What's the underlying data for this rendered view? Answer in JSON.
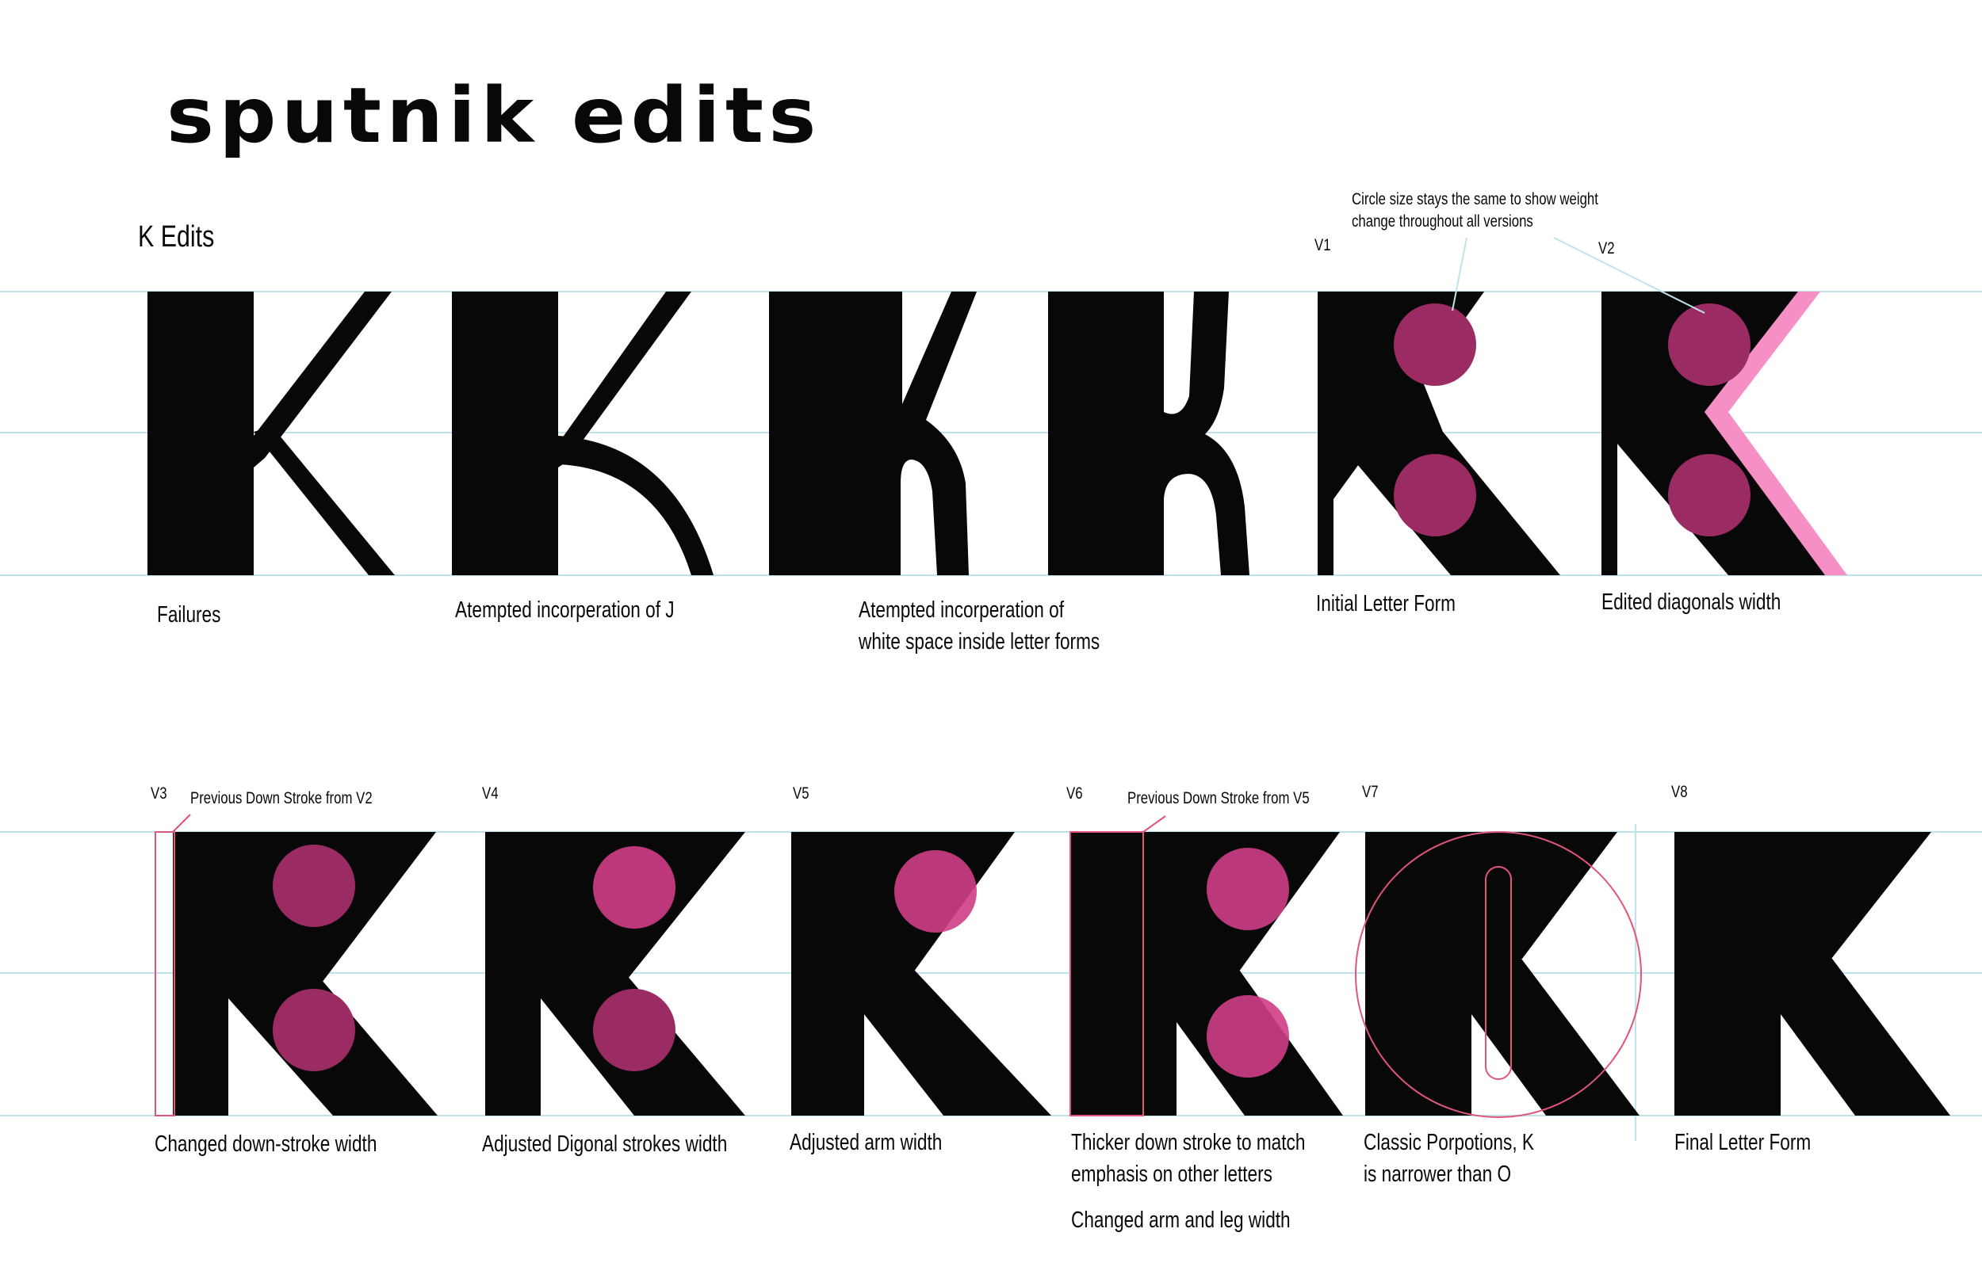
{
  "title": "sputnik edits",
  "section_title": "K Edits",
  "colors": {
    "ink": "#080808",
    "circle": "#9b2c63",
    "circle_overlap": "#f04a9d",
    "highlight": "#f58fc6",
    "guide": "#bfe3ea",
    "redline": "#e0557c"
  },
  "annotation_weight": "Circle size stays the same to show weight change throughout all versions",
  "annotation_weight_lines": [
    "Circle size stays the same to show weight",
    "change throughout all versions"
  ],
  "row1": [
    {
      "version": "",
      "caption_lines": [
        "Failures"
      ]
    },
    {
      "version": "",
      "caption_lines": [
        "Atempted incorperation of J"
      ]
    },
    {
      "version": "",
      "caption_lines": [
        "Atempted incorperation of",
        "white space inside letter forms"
      ]
    },
    {
      "version": "V1",
      "caption_lines": [
        "Initial Letter Form"
      ]
    },
    {
      "version": "V2",
      "caption_lines": [
        "Edited diagonals width"
      ]
    }
  ],
  "row2": [
    {
      "version": "V3",
      "note": "Previous Down Stroke from V2",
      "caption_lines": [
        "Changed down-stroke width"
      ]
    },
    {
      "version": "V4",
      "note": "",
      "caption_lines": [
        "Adjusted Digonal strokes width"
      ]
    },
    {
      "version": "V5",
      "note": "",
      "caption_lines": [
        "Adjusted arm width"
      ]
    },
    {
      "version": "V6",
      "note": "Previous Down Stroke from V5",
      "caption_lines": [
        "Thicker down stroke to match",
        "emphasis on other letters"
      ],
      "extra": "Changed arm and leg width"
    },
    {
      "version": "V7",
      "note": "",
      "caption_lines": [
        "Classic Porpotions, K",
        "is narrower than O"
      ]
    },
    {
      "version": "V8",
      "note": "",
      "caption_lines": [
        "Final Letter Form"
      ]
    }
  ]
}
